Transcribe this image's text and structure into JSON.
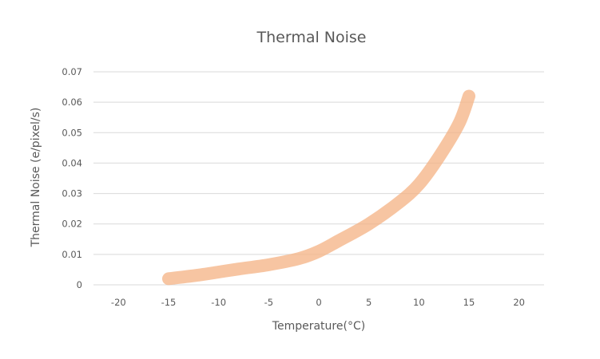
{
  "chart_data": {
    "type": "line",
    "title": "Thermal Noise",
    "xlabel": "Temperature(°C)",
    "ylabel": "Thermal Noise (e/pixel/s)",
    "xlim": [
      -22.5,
      22.5
    ],
    "ylim": [
      0,
      0.07
    ],
    "x_ticks": [
      -20,
      -15,
      -10,
      -5,
      0,
      5,
      10,
      15,
      20
    ],
    "x_tick_labels": [
      "-20",
      "-15",
      "-10",
      "-5",
      "0",
      "5",
      "10",
      "15",
      "20"
    ],
    "y_ticks": [
      0,
      0.01,
      0.02,
      0.03,
      0.04,
      0.05,
      0.06,
      0.07
    ],
    "y_tick_labels": [
      "0",
      "0.01",
      "0.02",
      "0.03",
      "0.04",
      "0.05",
      "0.06",
      "0.07"
    ],
    "grid": "horizontal",
    "legend": "none",
    "series": [
      {
        "color": "#f4b183",
        "x": [
          -15,
          -12,
          -10,
          -8,
          -5,
          -2,
          0,
          2,
          5,
          8,
          10,
          12,
          14,
          15
        ],
        "y": [
          0.002,
          0.0032,
          0.0042,
          0.0052,
          0.0066,
          0.0086,
          0.011,
          0.0145,
          0.02,
          0.027,
          0.033,
          0.042,
          0.053,
          0.062
        ]
      }
    ]
  }
}
